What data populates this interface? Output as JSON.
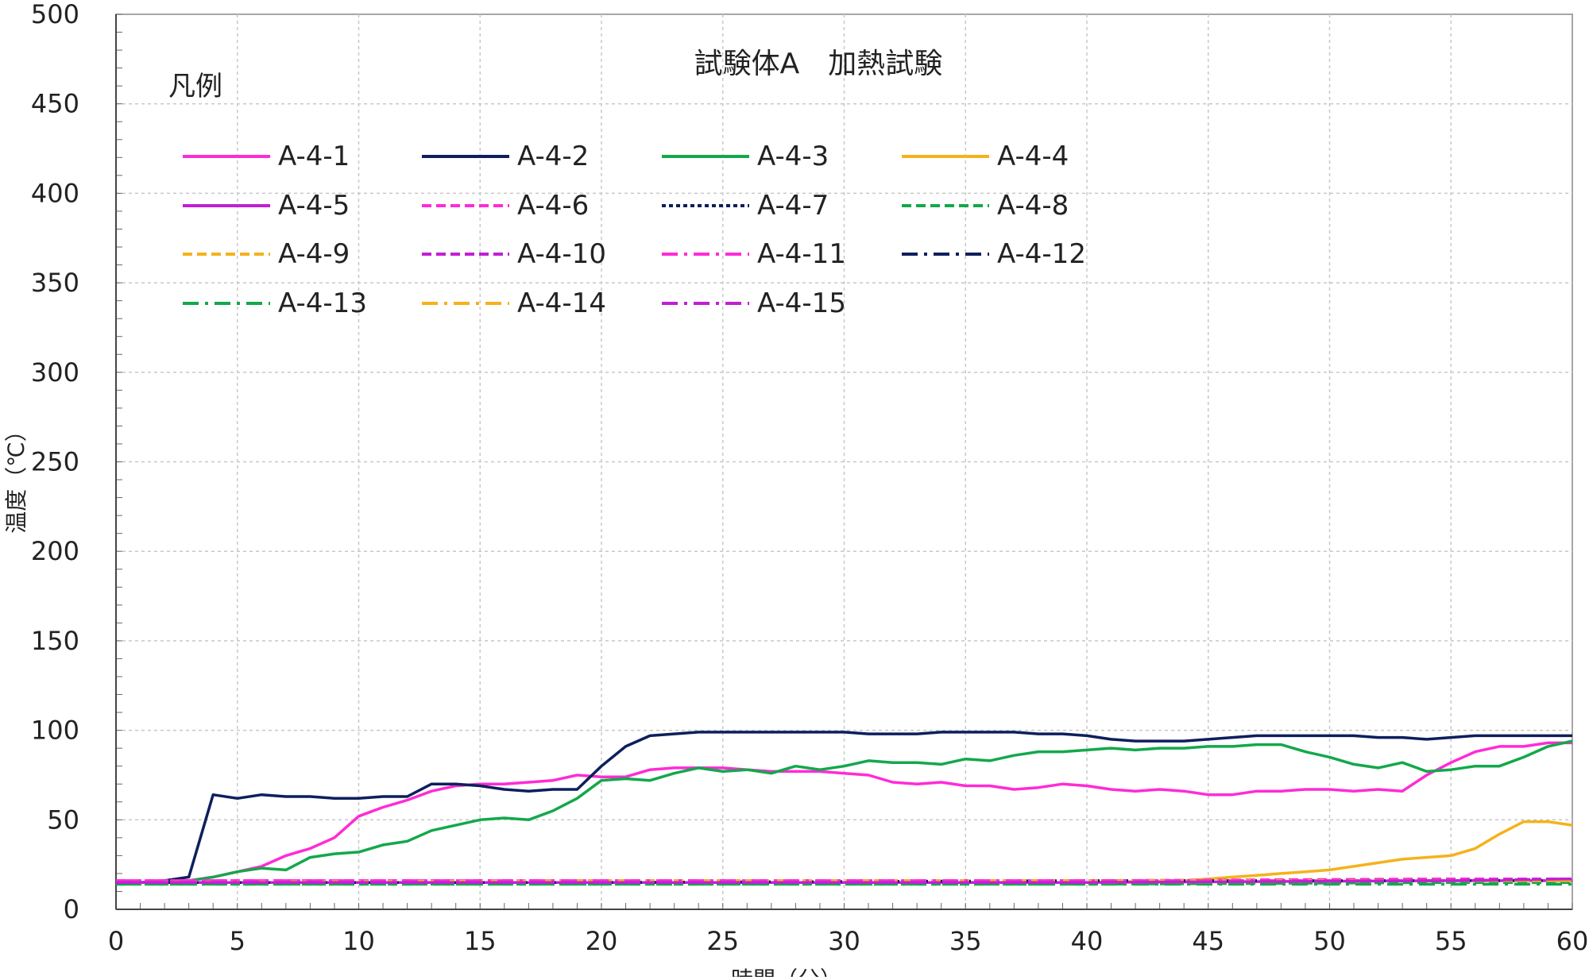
{
  "chart_data": {
    "type": "line",
    "title": "試験体A　加熱試験",
    "xlabel": "時間（分）",
    "ylabel": "温度（℃）",
    "xlim": [
      0,
      60
    ],
    "ylim": [
      0,
      500
    ],
    "xticks": [
      "0",
      "5",
      "10",
      "15",
      "20",
      "25",
      "30",
      "35",
      "40",
      "45",
      "50",
      "55",
      "60"
    ],
    "yticks": [
      "0",
      "50",
      "100",
      "150",
      "200",
      "250",
      "300",
      "350",
      "400",
      "450",
      "500"
    ],
    "grid": true,
    "legend_title": "凡例",
    "legend_position": "top-left",
    "series": [
      {
        "name": "A-4-1",
        "color": "#ff2bd6",
        "style": "solid",
        "x": [
          0,
          2,
          3,
          4,
          5,
          6,
          7,
          8,
          9,
          10,
          11,
          12,
          13,
          14,
          15,
          16,
          17,
          18,
          19,
          20,
          21,
          22,
          23,
          24,
          25,
          26,
          27,
          28,
          29,
          30,
          31,
          32,
          33,
          34,
          35,
          36,
          37,
          38,
          39,
          40,
          41,
          42,
          43,
          44,
          45,
          46,
          47,
          48,
          49,
          50,
          51,
          52,
          53,
          54,
          55,
          56,
          57,
          58,
          59,
          60
        ],
        "y": [
          15,
          15,
          16,
          18,
          21,
          24,
          30,
          34,
          40,
          52,
          57,
          61,
          66,
          69,
          70,
          70,
          71,
          72,
          75,
          74,
          74,
          78,
          79,
          79,
          79,
          78,
          77,
          77,
          77,
          76,
          75,
          71,
          70,
          71,
          69,
          69,
          67,
          68,
          70,
          69,
          67,
          66,
          67,
          66,
          64,
          64,
          66,
          66,
          67,
          67,
          66,
          67,
          66,
          75,
          82,
          88,
          91,
          91,
          93,
          93
        ]
      },
      {
        "name": "A-4-2",
        "color": "#0d1f5c",
        "style": "solid",
        "x": [
          0,
          1,
          2,
          3,
          4,
          5,
          6,
          7,
          8,
          9,
          10,
          11,
          12,
          13,
          14,
          15,
          16,
          17,
          18,
          19,
          20,
          21,
          22,
          23,
          24,
          25,
          26,
          27,
          28,
          29,
          30,
          31,
          32,
          33,
          34,
          35,
          36,
          37,
          38,
          39,
          40,
          41,
          42,
          43,
          44,
          45,
          46,
          47,
          48,
          49,
          50,
          51,
          52,
          53,
          54,
          55,
          56,
          57,
          58,
          59,
          60
        ],
        "y": [
          15,
          15,
          16,
          18,
          64,
          62,
          64,
          63,
          63,
          62,
          62,
          63,
          63,
          70,
          70,
          69,
          67,
          66,
          67,
          67,
          80,
          91,
          97,
          98,
          99,
          99,
          99,
          99,
          99,
          99,
          99,
          98,
          98,
          98,
          99,
          99,
          99,
          99,
          98,
          98,
          97,
          95,
          94,
          94,
          94,
          95,
          96,
          97,
          97,
          97,
          97,
          97,
          96,
          96,
          95,
          96,
          97,
          97,
          97,
          97,
          97
        ]
      },
      {
        "name": "A-4-3",
        "color": "#13a84b",
        "style": "solid",
        "x": [
          0,
          2,
          3,
          4,
          5,
          6,
          7,
          8,
          9,
          10,
          11,
          12,
          13,
          14,
          15,
          16,
          17,
          18,
          19,
          20,
          21,
          22,
          23,
          24,
          25,
          26,
          27,
          28,
          29,
          30,
          31,
          32,
          33,
          34,
          35,
          36,
          37,
          38,
          39,
          40,
          41,
          42,
          43,
          44,
          45,
          46,
          47,
          48,
          49,
          50,
          51,
          52,
          53,
          54,
          55,
          56,
          57,
          58,
          59,
          60
        ],
        "y": [
          15,
          15,
          16,
          18,
          21,
          23,
          22,
          29,
          31,
          32,
          36,
          38,
          44,
          47,
          50,
          51,
          50,
          55,
          62,
          72,
          73,
          72,
          76,
          79,
          77,
          78,
          76,
          80,
          78,
          80,
          83,
          82,
          82,
          81,
          84,
          83,
          86,
          88,
          88,
          89,
          90,
          89,
          90,
          90,
          91,
          91,
          92,
          92,
          88,
          85,
          81,
          79,
          82,
          77,
          78,
          80,
          80,
          85,
          91,
          94
        ]
      },
      {
        "name": "A-4-4",
        "color": "#f5b21b",
        "style": "solid",
        "x": [
          0,
          40,
          44,
          45,
          46,
          47,
          48,
          49,
          50,
          51,
          52,
          53,
          54,
          55,
          56,
          57,
          58,
          59,
          60
        ],
        "y": [
          15,
          15,
          16,
          17,
          18,
          19,
          20,
          21,
          22,
          24,
          26,
          28,
          29,
          30,
          34,
          42,
          49,
          49,
          47
        ]
      },
      {
        "name": "A-4-5",
        "color": "#c21fd6",
        "style": "solid",
        "x": [
          0,
          20,
          40,
          55,
          60
        ],
        "y": [
          15,
          15,
          15,
          16,
          16
        ]
      },
      {
        "name": "A-4-6",
        "color": "#ff2bd6",
        "style": "dash",
        "x": [
          0,
          20,
          40,
          55,
          60
        ],
        "y": [
          16,
          16,
          16,
          17,
          17
        ]
      },
      {
        "name": "A-4-7",
        "color": "#0d1f5c",
        "style": "dot",
        "x": [
          0,
          20,
          40,
          55,
          60
        ],
        "y": [
          15,
          15,
          16,
          16,
          16
        ]
      },
      {
        "name": "A-4-8",
        "color": "#13a84b",
        "style": "dash",
        "x": [
          0,
          20,
          40,
          55,
          60
        ],
        "y": [
          14,
          14,
          14,
          15,
          15
        ]
      },
      {
        "name": "A-4-9",
        "color": "#f5b21b",
        "style": "dash",
        "x": [
          0,
          20,
          40,
          55,
          60
        ],
        "y": [
          15,
          16,
          16,
          16,
          16
        ]
      },
      {
        "name": "A-4-10",
        "color": "#c21fd6",
        "style": "dash",
        "x": [
          0,
          20,
          40,
          55,
          60
        ],
        "y": [
          15,
          15,
          15,
          16,
          17
        ]
      },
      {
        "name": "A-4-11",
        "color": "#ff2bd6",
        "style": "dashdot",
        "x": [
          0,
          20,
          40,
          55,
          60
        ],
        "y": [
          16,
          16,
          16,
          16,
          17
        ]
      },
      {
        "name": "A-4-12",
        "color": "#0d1f5c",
        "style": "dashdot",
        "x": [
          0,
          20,
          40,
          55,
          60
        ],
        "y": [
          15,
          15,
          15,
          16,
          16
        ]
      },
      {
        "name": "A-4-13",
        "color": "#13a84b",
        "style": "dashdot",
        "x": [
          0,
          20,
          40,
          55,
          60
        ],
        "y": [
          14,
          14,
          14,
          14,
          14
        ]
      },
      {
        "name": "A-4-14",
        "color": "#f5b21b",
        "style": "dashdot",
        "x": [
          0,
          20,
          40,
          55,
          60
        ],
        "y": [
          15,
          15,
          15,
          16,
          16
        ]
      },
      {
        "name": "A-4-15",
        "color": "#c21fd6",
        "style": "dashdot",
        "x": [
          0,
          20,
          40,
          55,
          60
        ],
        "y": [
          15,
          15,
          15,
          16,
          17
        ]
      }
    ]
  }
}
